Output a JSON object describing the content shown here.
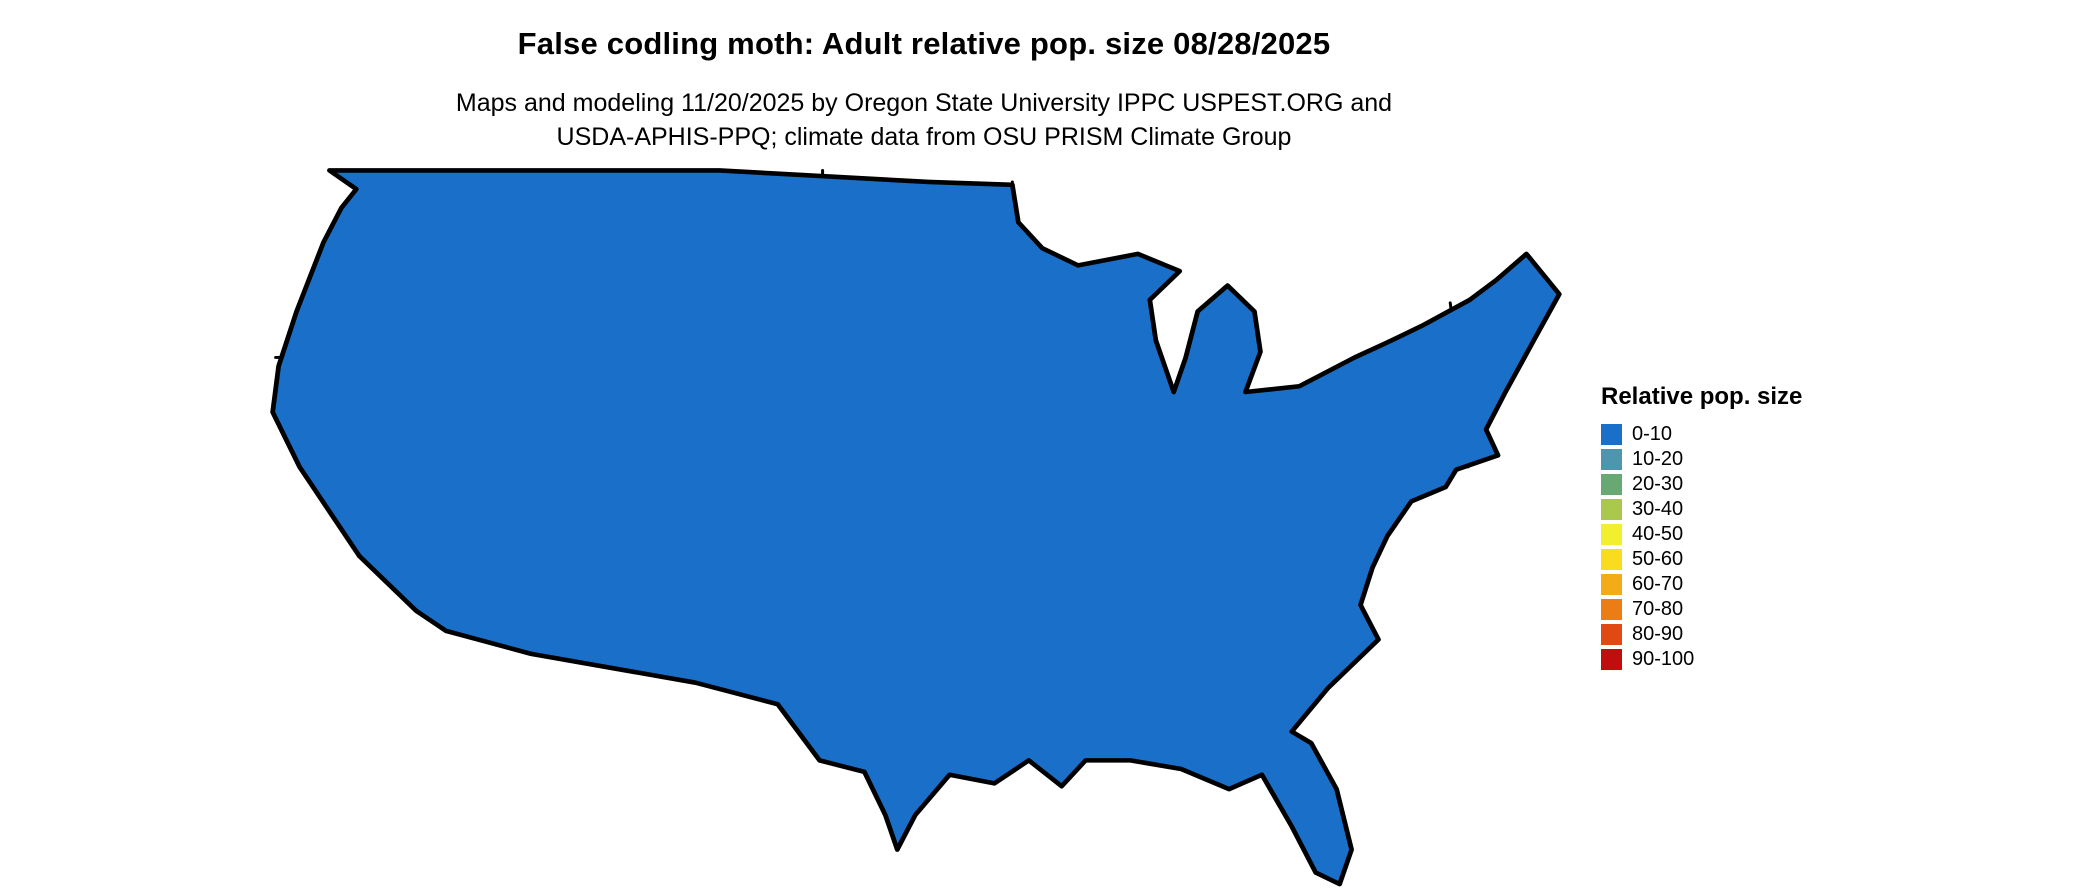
{
  "title": "False codling moth: Adult relative pop. size 08/28/2025",
  "subtitle": {
    "line1": "Maps and modeling 11/20/2025 by Oregon State University IPPC USPEST.ORG and",
    "line2": "USDA-APHIS-PPQ; climate data from OSU PRISM Climate Group"
  },
  "legend": {
    "title": "Relative pop. size",
    "items": [
      {
        "label": "0-10",
        "color": "#1a70c8"
      },
      {
        "label": "10-20",
        "color": "#4e96ad"
      },
      {
        "label": "20-30",
        "color": "#67a873"
      },
      {
        "label": "30-40",
        "color": "#a9c84c"
      },
      {
        "label": "40-50",
        "color": "#f2ef2e"
      },
      {
        "label": "50-60",
        "color": "#f9dc1d"
      },
      {
        "label": "60-70",
        "color": "#f3ab17"
      },
      {
        "label": "70-80",
        "color": "#ec7d14"
      },
      {
        "label": "80-90",
        "color": "#e04911"
      },
      {
        "label": "90-100",
        "color": "#c00d0d"
      }
    ]
  }
}
